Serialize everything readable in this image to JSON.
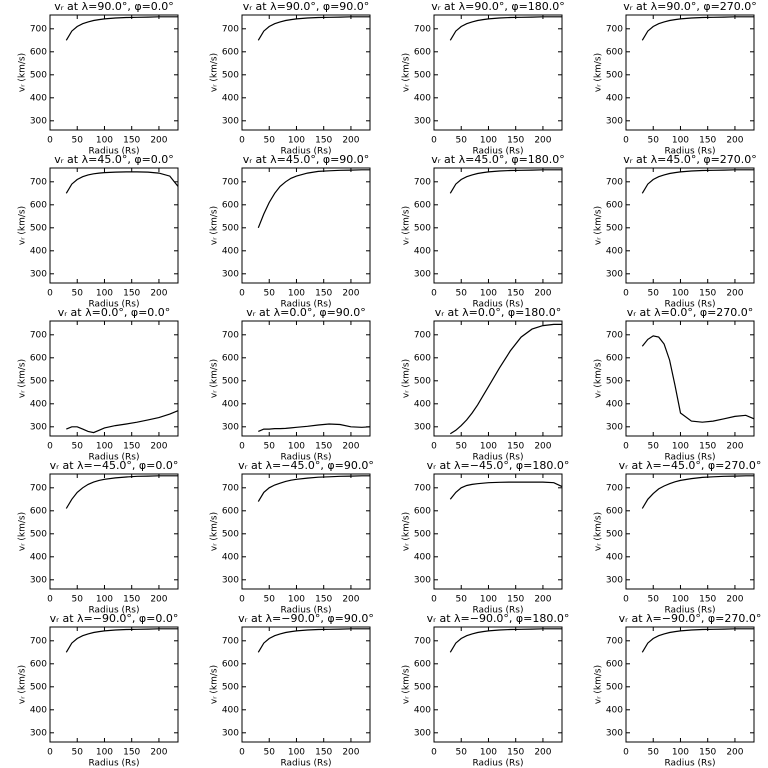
{
  "chart_data": [
    {
      "type": "line",
      "title": "vᵣ at λ=90.0°, φ=0.0°",
      "xlabel": "Radius (Rs)",
      "ylabel": "vᵣ (km/s)",
      "x": [
        30,
        40,
        50,
        60,
        70,
        80,
        90,
        100,
        120,
        140,
        160,
        180,
        200,
        220,
        235
      ],
      "values": [
        650,
        690,
        710,
        722,
        730,
        736,
        740,
        743,
        747,
        749,
        750,
        751,
        752,
        752,
        752
      ],
      "color": "#000000",
      "xlim": [
        0,
        235
      ],
      "ylim": [
        260,
        760
      ],
      "xticks": [
        0,
        50,
        100,
        150,
        200
      ],
      "yticks": [
        300,
        400,
        500,
        600,
        700
      ]
    },
    {
      "type": "line",
      "title": "vᵣ at λ=90.0°, φ=90.0°",
      "xlabel": "Radius (Rs)",
      "ylabel": "vᵣ (km/s)",
      "x": [
        30,
        40,
        50,
        60,
        70,
        80,
        90,
        100,
        120,
        140,
        160,
        180,
        200,
        220,
        235
      ],
      "values": [
        650,
        690,
        710,
        722,
        730,
        736,
        740,
        743,
        747,
        749,
        750,
        751,
        752,
        752,
        752
      ],
      "color": "#000000",
      "xlim": [
        0,
        235
      ],
      "ylim": [
        260,
        760
      ],
      "xticks": [
        0,
        50,
        100,
        150,
        200
      ],
      "yticks": [
        300,
        400,
        500,
        600,
        700
      ]
    },
    {
      "type": "line",
      "title": "vᵣ at λ=90.0°, φ=180.0°",
      "xlabel": "Radius (Rs)",
      "ylabel": "vᵣ (km/s)",
      "x": [
        30,
        40,
        50,
        60,
        70,
        80,
        90,
        100,
        120,
        140,
        160,
        180,
        200,
        220,
        235
      ],
      "values": [
        650,
        690,
        710,
        722,
        730,
        736,
        740,
        743,
        747,
        749,
        750,
        751,
        752,
        752,
        752
      ],
      "color": "#000000",
      "xlim": [
        0,
        235
      ],
      "ylim": [
        260,
        760
      ],
      "xticks": [
        0,
        50,
        100,
        150,
        200
      ],
      "yticks": [
        300,
        400,
        500,
        600,
        700
      ]
    },
    {
      "type": "line",
      "title": "vᵣ at λ=90.0°, φ=270.0°",
      "xlabel": "Radius (Rs)",
      "ylabel": "vᵣ (km/s)",
      "x": [
        30,
        40,
        50,
        60,
        70,
        80,
        90,
        100,
        120,
        140,
        160,
        180,
        200,
        220,
        235
      ],
      "values": [
        650,
        690,
        710,
        722,
        730,
        736,
        740,
        743,
        747,
        749,
        750,
        751,
        752,
        752,
        752
      ],
      "color": "#000000",
      "xlim": [
        0,
        235
      ],
      "ylim": [
        260,
        760
      ],
      "xticks": [
        0,
        50,
        100,
        150,
        200
      ],
      "yticks": [
        300,
        400,
        500,
        600,
        700
      ]
    },
    {
      "type": "line",
      "title": "vᵣ at λ=45.0°, φ=0.0°",
      "xlabel": "Radius (Rs)",
      "ylabel": "vᵣ (km/s)",
      "x": [
        30,
        40,
        50,
        60,
        70,
        80,
        90,
        100,
        120,
        140,
        160,
        180,
        200,
        220,
        235
      ],
      "values": [
        650,
        690,
        710,
        722,
        730,
        735,
        738,
        740,
        742,
        743,
        743,
        742,
        738,
        725,
        680
      ],
      "color": "#000000",
      "xlim": [
        0,
        235
      ],
      "ylim": [
        260,
        760
      ],
      "xticks": [
        0,
        50,
        100,
        150,
        200
      ],
      "yticks": [
        300,
        400,
        500,
        600,
        700
      ]
    },
    {
      "type": "line",
      "title": "vᵣ at λ=45.0°, φ=90.0°",
      "xlabel": "Radius (Rs)",
      "ylabel": "vᵣ (km/s)",
      "x": [
        30,
        40,
        50,
        60,
        70,
        80,
        90,
        100,
        120,
        140,
        160,
        180,
        200,
        220,
        235
      ],
      "values": [
        500,
        560,
        610,
        650,
        680,
        700,
        715,
        725,
        738,
        745,
        748,
        750,
        751,
        752,
        752
      ],
      "color": "#000000",
      "xlim": [
        0,
        235
      ],
      "ylim": [
        260,
        760
      ],
      "xticks": [
        0,
        50,
        100,
        150,
        200
      ],
      "yticks": [
        300,
        400,
        500,
        600,
        700
      ]
    },
    {
      "type": "line",
      "title": "vᵣ at λ=45.0°, φ=180.0°",
      "xlabel": "Radius (Rs)",
      "ylabel": "vᵣ (km/s)",
      "x": [
        30,
        40,
        50,
        60,
        70,
        80,
        90,
        100,
        120,
        140,
        160,
        180,
        200,
        220,
        235
      ],
      "values": [
        650,
        690,
        710,
        722,
        730,
        736,
        740,
        743,
        747,
        749,
        750,
        751,
        752,
        752,
        752
      ],
      "color": "#000000",
      "xlim": [
        0,
        235
      ],
      "ylim": [
        260,
        760
      ],
      "xticks": [
        0,
        50,
        100,
        150,
        200
      ],
      "yticks": [
        300,
        400,
        500,
        600,
        700
      ]
    },
    {
      "type": "line",
      "title": "vᵣ at λ=45.0°, φ=270.0°",
      "xlabel": "Radius (Rs)",
      "ylabel": "vᵣ (km/s)",
      "x": [
        30,
        40,
        50,
        60,
        70,
        80,
        90,
        100,
        120,
        140,
        160,
        180,
        200,
        220,
        235
      ],
      "values": [
        650,
        690,
        710,
        722,
        730,
        736,
        740,
        743,
        747,
        749,
        750,
        751,
        752,
        752,
        752
      ],
      "color": "#000000",
      "xlim": [
        0,
        235
      ],
      "ylim": [
        260,
        760
      ],
      "xticks": [
        0,
        50,
        100,
        150,
        200
      ],
      "yticks": [
        300,
        400,
        500,
        600,
        700
      ]
    },
    {
      "type": "line",
      "title": "vᵣ at λ=0.0°, φ=0.0°",
      "xlabel": "Radius (Rs)",
      "ylabel": "vᵣ (km/s)",
      "x": [
        30,
        40,
        50,
        60,
        70,
        80,
        90,
        100,
        120,
        140,
        160,
        180,
        200,
        220,
        235
      ],
      "values": [
        290,
        300,
        300,
        290,
        280,
        275,
        285,
        295,
        305,
        312,
        320,
        330,
        340,
        355,
        370
      ],
      "color": "#000000",
      "xlim": [
        0,
        235
      ],
      "ylim": [
        260,
        760
      ],
      "xticks": [
        0,
        50,
        100,
        150,
        200
      ],
      "yticks": [
        300,
        400,
        500,
        600,
        700
      ]
    },
    {
      "type": "line",
      "title": "vᵣ at λ=0.0°, φ=90.0°",
      "xlabel": "Radius (Rs)",
      "ylabel": "vᵣ (km/s)",
      "x": [
        30,
        40,
        50,
        60,
        70,
        80,
        90,
        100,
        120,
        140,
        160,
        180,
        200,
        220,
        235
      ],
      "values": [
        280,
        290,
        290,
        292,
        292,
        293,
        295,
        298,
        302,
        308,
        312,
        310,
        300,
        298,
        300
      ],
      "color": "#000000",
      "xlim": [
        0,
        235
      ],
      "ylim": [
        260,
        760
      ],
      "xticks": [
        0,
        50,
        100,
        150,
        200
      ],
      "yticks": [
        300,
        400,
        500,
        600,
        700
      ]
    },
    {
      "type": "line",
      "title": "vᵣ at λ=0.0°, φ=180.0°",
      "xlabel": "Radius (Rs)",
      "ylabel": "vᵣ (km/s)",
      "x": [
        30,
        40,
        50,
        60,
        70,
        80,
        90,
        100,
        120,
        140,
        160,
        180,
        200,
        220,
        235
      ],
      "values": [
        270,
        285,
        305,
        330,
        360,
        395,
        435,
        475,
        555,
        630,
        690,
        725,
        740,
        745,
        745
      ],
      "color": "#000000",
      "xlim": [
        0,
        235
      ],
      "ylim": [
        260,
        760
      ],
      "xticks": [
        0,
        50,
        100,
        150,
        200
      ],
      "yticks": [
        300,
        400,
        500,
        600,
        700
      ]
    },
    {
      "type": "line",
      "title": "vᵣ at λ=0.0°, φ=270.0°",
      "xlabel": "Radius (Rs)",
      "ylabel": "vᵣ (km/s)",
      "x": [
        30,
        40,
        50,
        60,
        70,
        80,
        90,
        100,
        120,
        140,
        160,
        180,
        200,
        220,
        235
      ],
      "values": [
        650,
        680,
        695,
        690,
        660,
        590,
        480,
        360,
        325,
        320,
        325,
        335,
        345,
        350,
        335
      ],
      "color": "#000000",
      "xlim": [
        0,
        235
      ],
      "ylim": [
        260,
        760
      ],
      "xticks": [
        0,
        50,
        100,
        150,
        200
      ],
      "yticks": [
        300,
        400,
        500,
        600,
        700
      ]
    },
    {
      "type": "line",
      "title": "vᵣ at λ=−45.0°, φ=0.0°",
      "xlabel": "Radius (Rs)",
      "ylabel": "vᵣ (km/s)",
      "x": [
        30,
        40,
        50,
        60,
        70,
        80,
        90,
        100,
        120,
        140,
        160,
        180,
        200,
        220,
        235
      ],
      "values": [
        610,
        650,
        680,
        700,
        715,
        725,
        732,
        737,
        743,
        747,
        750,
        751,
        752,
        752,
        752
      ],
      "color": "#000000",
      "xlim": [
        0,
        235
      ],
      "ylim": [
        260,
        760
      ],
      "xticks": [
        0,
        50,
        100,
        150,
        200
      ],
      "yticks": [
        300,
        400,
        500,
        600,
        700
      ]
    },
    {
      "type": "line",
      "title": "vᵣ at λ=−45.0°, φ=90.0°",
      "xlabel": "Radius (Rs)",
      "ylabel": "vᵣ (km/s)",
      "x": [
        30,
        40,
        50,
        60,
        70,
        80,
        90,
        100,
        120,
        140,
        160,
        180,
        200,
        220,
        235
      ],
      "values": [
        640,
        680,
        700,
        712,
        720,
        728,
        733,
        737,
        742,
        746,
        748,
        750,
        751,
        752,
        752
      ],
      "color": "#000000",
      "xlim": [
        0,
        235
      ],
      "ylim": [
        260,
        760
      ],
      "xticks": [
        0,
        50,
        100,
        150,
        200
      ],
      "yticks": [
        300,
        400,
        500,
        600,
        700
      ]
    },
    {
      "type": "line",
      "title": "vᵣ at λ=−45.0°, φ=180.0°",
      "xlabel": "Radius (Rs)",
      "ylabel": "vᵣ (km/s)",
      "x": [
        30,
        40,
        50,
        60,
        70,
        80,
        90,
        100,
        120,
        140,
        160,
        180,
        200,
        220,
        235
      ],
      "values": [
        650,
        680,
        700,
        710,
        715,
        718,
        720,
        722,
        724,
        725,
        725,
        725,
        725,
        722,
        705
      ],
      "color": "#000000",
      "xlim": [
        0,
        235
      ],
      "ylim": [
        260,
        760
      ],
      "xticks": [
        0,
        50,
        100,
        150,
        200
      ],
      "yticks": [
        300,
        400,
        500,
        600,
        700
      ]
    },
    {
      "type": "line",
      "title": "vᵣ at λ=−45.0°, φ=270.0°",
      "xlabel": "Radius (Rs)",
      "ylabel": "vᵣ (km/s)",
      "x": [
        30,
        40,
        50,
        60,
        70,
        80,
        90,
        100,
        120,
        140,
        160,
        180,
        200,
        220,
        235
      ],
      "values": [
        610,
        650,
        675,
        695,
        708,
        718,
        726,
        732,
        740,
        745,
        748,
        750,
        751,
        752,
        752
      ],
      "color": "#000000",
      "xlim": [
        0,
        235
      ],
      "ylim": [
        260,
        760
      ],
      "xticks": [
        0,
        50,
        100,
        150,
        200
      ],
      "yticks": [
        300,
        400,
        500,
        600,
        700
      ]
    },
    {
      "type": "line",
      "title": "vᵣ at λ=−90.0°, φ=0.0°",
      "xlabel": "Radius (Rs)",
      "ylabel": "vᵣ (km/s)",
      "x": [
        30,
        40,
        50,
        60,
        70,
        80,
        90,
        100,
        120,
        140,
        160,
        180,
        200,
        220,
        235
      ],
      "values": [
        650,
        690,
        710,
        722,
        730,
        736,
        740,
        743,
        747,
        749,
        750,
        751,
        752,
        752,
        752
      ],
      "color": "#000000",
      "xlim": [
        0,
        235
      ],
      "ylim": [
        260,
        760
      ],
      "xticks": [
        0,
        50,
        100,
        150,
        200
      ],
      "yticks": [
        300,
        400,
        500,
        600,
        700
      ]
    },
    {
      "type": "line",
      "title": "vᵣ at λ=−90.0°, φ=90.0°",
      "xlabel": "Radius (Rs)",
      "ylabel": "vᵣ (km/s)",
      "x": [
        30,
        40,
        50,
        60,
        70,
        80,
        90,
        100,
        120,
        140,
        160,
        180,
        200,
        220,
        235
      ],
      "values": [
        650,
        690,
        710,
        722,
        730,
        736,
        740,
        743,
        747,
        749,
        750,
        751,
        752,
        752,
        752
      ],
      "color": "#000000",
      "xlim": [
        0,
        235
      ],
      "ylim": [
        260,
        760
      ],
      "xticks": [
        0,
        50,
        100,
        150,
        200
      ],
      "yticks": [
        300,
        400,
        500,
        600,
        700
      ]
    },
    {
      "type": "line",
      "title": "vᵣ at λ=−90.0°, φ=180.0°",
      "xlabel": "Radius (Rs)",
      "ylabel": "vᵣ (km/s)",
      "x": [
        30,
        40,
        50,
        60,
        70,
        80,
        90,
        100,
        120,
        140,
        160,
        180,
        200,
        220,
        235
      ],
      "values": [
        650,
        690,
        710,
        722,
        730,
        736,
        740,
        743,
        747,
        749,
        750,
        751,
        752,
        752,
        752
      ],
      "color": "#000000",
      "xlim": [
        0,
        235
      ],
      "ylim": [
        260,
        760
      ],
      "xticks": [
        0,
        50,
        100,
        150,
        200
      ],
      "yticks": [
        300,
        400,
        500,
        600,
        700
      ]
    },
    {
      "type": "line",
      "title": "vᵣ at λ=−90.0°, φ=270.0°",
      "xlabel": "Radius (Rs)",
      "ylabel": "vᵣ (km/s)",
      "x": [
        30,
        40,
        50,
        60,
        70,
        80,
        90,
        100,
        120,
        140,
        160,
        180,
        200,
        220,
        235
      ],
      "values": [
        650,
        690,
        710,
        722,
        730,
        736,
        740,
        743,
        747,
        749,
        750,
        751,
        752,
        752,
        752
      ],
      "color": "#000000",
      "xlim": [
        0,
        235
      ],
      "ylim": [
        260,
        760
      ],
      "xticks": [
        0,
        50,
        100,
        150,
        200
      ],
      "yticks": [
        300,
        400,
        500,
        600,
        700
      ]
    }
  ]
}
